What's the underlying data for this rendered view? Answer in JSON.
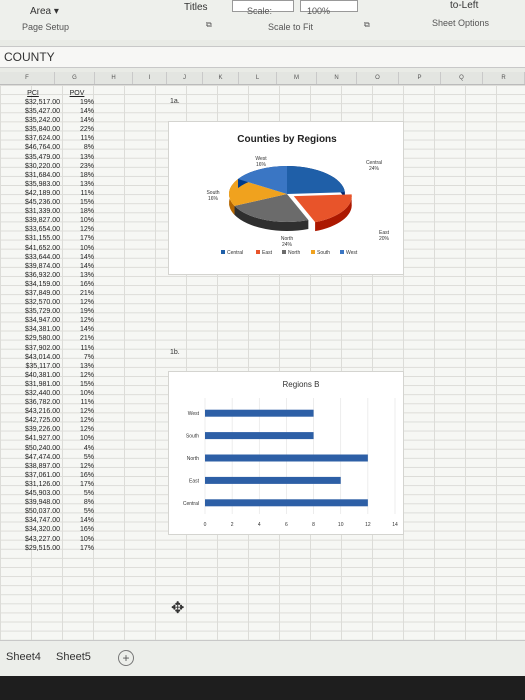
{
  "ribbon": {
    "area_label": "Area",
    "page_setup": "Page Setup",
    "titles": "Titles",
    "scale_label": "Scale:",
    "scale_value": "100%",
    "scale_to_fit": "Scale to Fit",
    "to_left": "to-Left",
    "sheet_options": "Sheet Options"
  },
  "namebox": {
    "text": "COUNTY"
  },
  "columns": [
    "F",
    "G",
    "H",
    "I",
    "J",
    "K",
    "L",
    "M",
    "N",
    "O",
    "P",
    "Q",
    "R"
  ],
  "table": {
    "headers": {
      "pci": "PCI",
      "pov": "POV"
    },
    "rows": [
      [
        "$32,517.00",
        "19%"
      ],
      [
        "$35,427.00",
        "14%"
      ],
      [
        "$35,242.00",
        "14%"
      ],
      [
        "$35,840.00",
        "22%"
      ],
      [
        "$37,624.00",
        "11%"
      ],
      [
        "$46,764.00",
        "8%"
      ],
      [
        "$35,479.00",
        "13%"
      ],
      [
        "$30,220.00",
        "23%"
      ],
      [
        "$31,684.00",
        "18%"
      ],
      [
        "$35,983.00",
        "13%"
      ],
      [
        "$42,189.00",
        "11%"
      ],
      [
        "$45,236.00",
        "15%"
      ],
      [
        "$31,339.00",
        "18%"
      ],
      [
        "$39,827.00",
        "10%"
      ],
      [
        "$33,654.00",
        "12%"
      ],
      [
        "$31,155.00",
        "17%"
      ],
      [
        "$41,652.00",
        "10%"
      ],
      [
        "$33,644.00",
        "14%"
      ],
      [
        "$39,874.00",
        "14%"
      ],
      [
        "$36,932.00",
        "13%"
      ],
      [
        "$34,159.00",
        "16%"
      ],
      [
        "$37,849.00",
        "21%"
      ],
      [
        "$32,570.00",
        "12%"
      ],
      [
        "$35,729.00",
        "19%"
      ],
      [
        "$34,947.00",
        "12%"
      ],
      [
        "$34,381.00",
        "14%"
      ],
      [
        "$29,580.00",
        "21%"
      ],
      [
        "$37,902.00",
        "11%"
      ],
      [
        "$43,014.00",
        "7%"
      ],
      [
        "$35,117.00",
        "13%"
      ],
      [
        "$40,381.00",
        "12%"
      ],
      [
        "$31,981.00",
        "15%"
      ],
      [
        "$32,440.00",
        "10%"
      ],
      [
        "$36,782.00",
        "11%"
      ],
      [
        "$43,216.00",
        "12%"
      ],
      [
        "$42,725.00",
        "12%"
      ],
      [
        "$39,226.00",
        "12%"
      ],
      [
        "$41,927.00",
        "10%"
      ],
      [
        "$50,240.00",
        "4%"
      ],
      [
        "$47,474.00",
        "5%"
      ],
      [
        "$38,897.00",
        "12%"
      ],
      [
        "$37,061.00",
        "16%"
      ],
      [
        "$31,126.00",
        "17%"
      ],
      [
        "$45,903.00",
        "5%"
      ],
      [
        "$39,948.00",
        "8%"
      ],
      [
        "$50,037.00",
        "5%"
      ],
      [
        "$34,747.00",
        "14%"
      ],
      [
        "$34,320.00",
        "16%"
      ],
      [
        "$43,227.00",
        "10%"
      ],
      [
        "$29,515.00",
        "17%"
      ]
    ]
  },
  "labels": {
    "l1a": "1a.",
    "l1b": "1b."
  },
  "chart_data": [
    {
      "type": "pie",
      "title": "Counties by Regions",
      "slices": [
        {
          "label": "Central",
          "value": 24,
          "pct_label": "24%",
          "color": "#1f5fa8"
        },
        {
          "label": "East",
          "value": 20,
          "pct_label": "20%",
          "color": "#e8542a"
        },
        {
          "label": "North",
          "value": 24,
          "pct_label": "24%",
          "color": "#6b6b6b"
        },
        {
          "label": "South",
          "value": 16,
          "pct_label": "16%",
          "color": "#f0a21e"
        },
        {
          "label": "West",
          "value": 16,
          "pct_label": "16%",
          "color": "#3a76c4"
        }
      ],
      "legend": [
        "Central",
        "East",
        "North",
        "South",
        "West"
      ],
      "legend_position": "bottom"
    },
    {
      "type": "bar",
      "orientation": "horizontal",
      "title": "Regions B",
      "categories": [
        "West",
        "South",
        "North",
        "East",
        "Central"
      ],
      "values": [
        8,
        8,
        12,
        10,
        12
      ],
      "xlim": [
        0,
        14
      ],
      "xticks": [
        "0",
        "2",
        "4",
        "6",
        "8",
        "10",
        "12",
        "14"
      ],
      "color": "#2d5fa6"
    }
  ],
  "sheets": {
    "tab1": "Sheet4",
    "tab2": "Sheet5",
    "add_icon": "plus-circle-icon"
  }
}
